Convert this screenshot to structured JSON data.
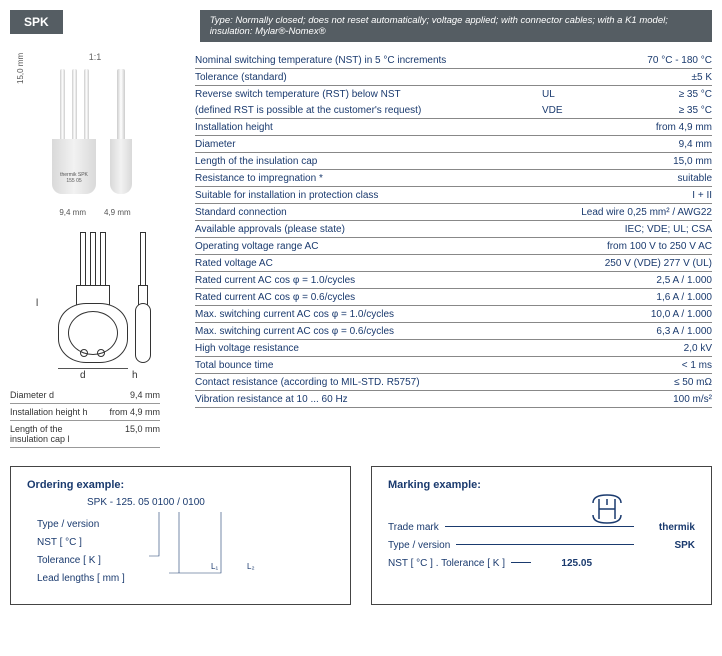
{
  "badge": "SPK",
  "type_bar": "Type: Normally closed; does not reset automatically; voltage applied; with connector cables; with a K1 model; insulation: Mylar®-Nomex®",
  "scale": "1:1",
  "img_dims": {
    "height": "15,0 mm",
    "width": "9,4 mm",
    "depth": "4,9 mm"
  },
  "cap_text": "thermik\nSPK 155 05",
  "schematic_letters": {
    "d": "d",
    "h": "h",
    "l": "l"
  },
  "mini": [
    {
      "label": "Diameter d",
      "value": "9,4 mm"
    },
    {
      "label": "Installation height h",
      "value": "from 4,9 mm"
    },
    {
      "label": "Length of the insulation cap l",
      "value": "15,0 mm"
    }
  ],
  "specs": [
    {
      "label": "Nominal switching temperature (NST) in 5 °C increments",
      "value": "70 °C - 180 °C"
    },
    {
      "label": "Tolerance (standard)",
      "value": "±5 K"
    },
    {
      "label": "Reverse switch temperature (RST) below NST",
      "mid": "UL",
      "value": "≥ 35 °C",
      "label2": "(defined RST is possible at the customer's request)",
      "mid2": "VDE",
      "value2": "≥ 35 °C"
    },
    {
      "label": "Installation height",
      "value": "from 4,9 mm"
    },
    {
      "label": "Diameter",
      "value": "9,4 mm"
    },
    {
      "label": "Length of the insulation cap",
      "value": "15,0 mm"
    },
    {
      "label": "Resistance to impregnation *",
      "value": "suitable"
    },
    {
      "label": "Suitable for installation in protection class",
      "value": "I + II"
    },
    {
      "label": "Standard connection",
      "value": "Lead wire 0,25 mm² / AWG22"
    },
    {
      "label": "Available approvals (please state)",
      "value": "IEC; VDE; UL; CSA"
    },
    {
      "label": "Operating voltage range AC",
      "value": "from 100 V to 250 V AC"
    },
    {
      "label": "Rated voltage AC",
      "value": "250 V (VDE) 277 V (UL)"
    },
    {
      "label": "Rated current AC cos φ = 1.0/cycles",
      "value": "2,5 A / 1.000"
    },
    {
      "label": "Rated current AC cos φ = 0.6/cycles",
      "value": "1,6 A / 1.000"
    },
    {
      "label": "Max. switching current  AC cos φ = 1.0/cycles",
      "value": "10,0 A / 1.000"
    },
    {
      "label": "Max. switching current  AC cos φ = 0.6/cycles",
      "value": "6,3 A / 1.000"
    },
    {
      "label": "High voltage resistance",
      "value": "2,0 kV"
    },
    {
      "label": "Total bounce time",
      "value": "< 1 ms"
    },
    {
      "label": "Contact resistance (according to MIL-STD. R5757)",
      "value": "≤ 50 mΩ"
    },
    {
      "label": "Vibration resistance at 10 ... 60 Hz",
      "value": "100 m/s²"
    }
  ],
  "ordering": {
    "title": "Ordering example:",
    "code": "SPK - 125.   05 0100 / 0100",
    "lines": [
      "Type / version",
      "NST [ °C ]",
      "Tolerance [ K ]",
      "Lead lengths [ mm ]"
    ],
    "l1": "L₁",
    "l2": "L₂"
  },
  "marking": {
    "title": "Marking example:",
    "rows": [
      {
        "k": "Trade mark",
        "v": "thermik"
      },
      {
        "k": "Type / version",
        "v": "SPK"
      },
      {
        "k": "NST [ °C ] . Tolerance [ K ]",
        "v": "125.05"
      }
    ]
  }
}
